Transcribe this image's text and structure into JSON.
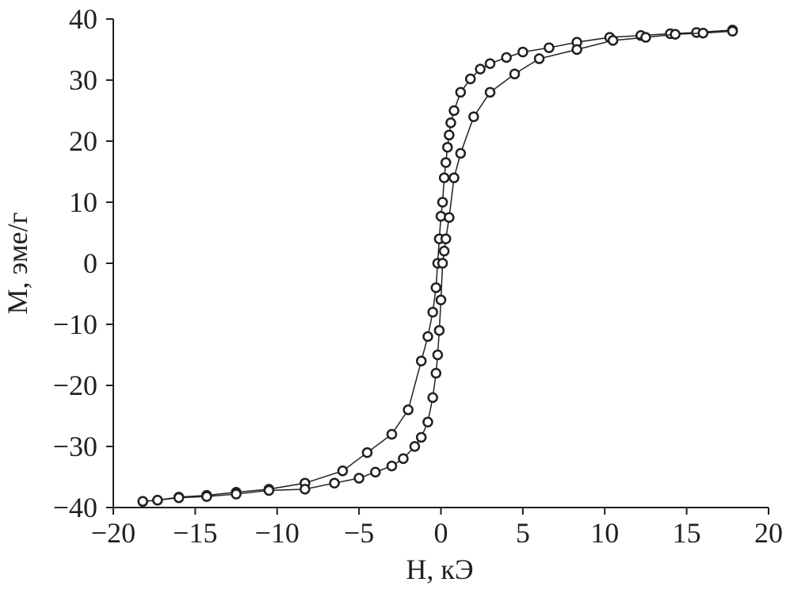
{
  "chart_data": {
    "type": "line",
    "markers": true,
    "color": "#231f20",
    "marker_fill": "#ffffff",
    "xlabel": "H, кЭ",
    "ylabel": "M, эме/г",
    "xlim": [
      -20,
      20
    ],
    "ylim": [
      -40,
      40
    ],
    "xticks": [
      {
        "value": -20,
        "label": "−20"
      },
      {
        "value": -15,
        "label": "−15"
      },
      {
        "value": -10,
        "label": "−10"
      },
      {
        "value": -5,
        "label": "−5"
      },
      0,
      5,
      10,
      15,
      20
    ],
    "yticks": [
      {
        "value": -40,
        "label": "−40"
      },
      {
        "value": -30,
        "label": "−30"
      },
      {
        "value": -20,
        "label": "−20"
      },
      {
        "value": -10,
        "label": "−10"
      },
      0,
      10,
      20,
      30,
      40
    ],
    "series": [
      {
        "x": [
          17.8,
          15.6,
          14,
          12.2,
          10.3,
          8.3,
          6.6,
          5,
          4,
          3,
          2.4,
          1.8,
          1.2,
          0.8,
          0.6,
          0.5,
          0.4,
          0.3,
          0.2,
          0.1,
          0,
          -0.1,
          -0.2,
          -0.3,
          -0.5,
          -0.8,
          -1.2,
          -2,
          -3,
          -4.5,
          -6,
          -8.3,
          -10.5,
          -12.5,
          -14.3,
          -16,
          -17.3,
          -18.2
        ],
        "values": [
          38.2,
          37.8,
          37.6,
          37.3,
          37,
          36.2,
          35.3,
          34.6,
          33.7,
          32.7,
          31.8,
          30.2,
          28,
          25,
          23,
          21,
          19,
          16.5,
          14,
          10,
          7.7,
          4,
          0,
          -4,
          -8,
          -12,
          -16,
          -24,
          -28,
          -31,
          -34,
          -36,
          -37,
          -37.5,
          -38,
          -38.3,
          -38.8,
          -39
        ]
      },
      {
        "x": [
          -18.2,
          -17.3,
          -16,
          -14.3,
          -12.5,
          -10.5,
          -8.3,
          -6.5,
          -5,
          -4,
          -3,
          -2.3,
          -1.6,
          -1.2,
          -0.8,
          -0.5,
          -0.3,
          -0.2,
          -0.1,
          0,
          0.1,
          0.2,
          0.3,
          0.5,
          0.8,
          1.2,
          2,
          3,
          4.5,
          6,
          8.3,
          10.5,
          12.5,
          14.3,
          16,
          17.8
        ],
        "values": [
          -39,
          -38.8,
          -38.4,
          -38.2,
          -37.8,
          -37.2,
          -37,
          -36,
          -35.2,
          -34.2,
          -33.2,
          -32,
          -30,
          -28.5,
          -26,
          -22,
          -18,
          -15,
          -11,
          -6,
          0,
          2,
          4,
          7.5,
          14,
          18,
          24,
          28,
          31,
          33.5,
          35,
          36.5,
          37,
          37.5,
          37.7,
          38
        ]
      }
    ]
  }
}
